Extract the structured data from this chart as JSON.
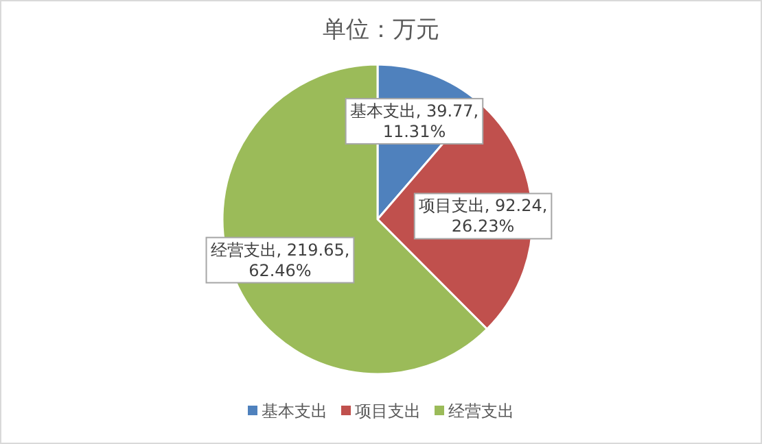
{
  "chart_data": {
    "type": "pie",
    "title": "单位：万元",
    "categories": [
      "基本支出",
      "项目支出",
      "经营支出"
    ],
    "values": [
      39.77,
      92.24,
      219.65
    ],
    "colors": [
      "#4f81bd",
      "#c0504d",
      "#9bbb59"
    ],
    "value_labels": [
      "基本支出, 39.77, 11.31%",
      "项目支出, 92.24, 26.23%",
      "经营支出, 219.65, 62.46%"
    ],
    "legend": "bottom"
  }
}
